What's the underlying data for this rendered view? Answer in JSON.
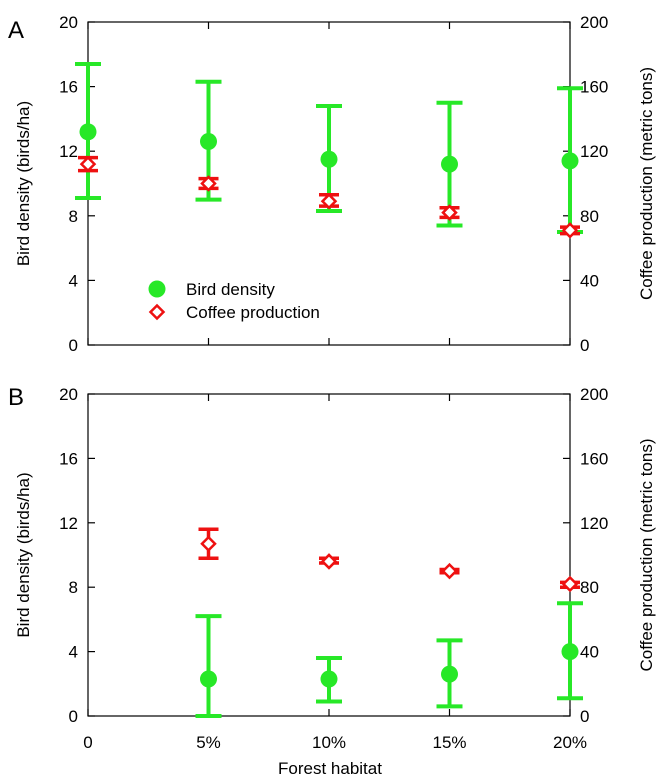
{
  "figure": {
    "x_axis_label": "Forest habitat",
    "x_tick_labels": [
      "0",
      "5%",
      "10%",
      "15%",
      "20%"
    ]
  },
  "colors": {
    "bird": "#27e827",
    "coffee": "#ee1111",
    "axis": "#000000"
  },
  "chart_data": [
    {
      "type": "scatter",
      "panel_label": "A",
      "x": [
        0,
        5,
        10,
        15,
        20
      ],
      "left_ylabel": "Bird density (birds/ha)",
      "right_ylabel": "Coffee production (metric tons)",
      "left_ylim": [
        0,
        20
      ],
      "right_ylim": [
        0,
        200
      ],
      "left_ticks": [
        "0",
        "4",
        "8",
        "12",
        "16",
        "20"
      ],
      "right_ticks": [
        "0",
        "40",
        "80",
        "120",
        "160",
        "200"
      ],
      "legend": {
        "placement": "lower-left",
        "entries": [
          "Bird density",
          "Coffee production"
        ]
      },
      "series": [
        {
          "name": "Bird density",
          "axis": "left",
          "marker": "circle",
          "values": [
            13.2,
            12.6,
            11.5,
            11.2,
            11.4
          ],
          "error_low": [
            9.1,
            9.0,
            8.3,
            7.4,
            7.0
          ],
          "error_high": [
            17.4,
            16.3,
            14.8,
            15.0,
            15.9
          ]
        },
        {
          "name": "Coffee production",
          "axis": "right",
          "marker": "diamond",
          "values": [
            112,
            100,
            89,
            82,
            71
          ],
          "error_low": [
            108,
            97,
            86,
            79,
            69
          ],
          "error_high": [
            116,
            103,
            93,
            85,
            73
          ]
        }
      ]
    },
    {
      "type": "scatter",
      "panel_label": "B",
      "x": [
        0,
        5,
        10,
        15,
        20
      ],
      "left_ylabel": "Bird density (birds/ha)",
      "right_ylabel": "Coffee production (metric tons)",
      "left_ylim": [
        0,
        20
      ],
      "right_ylim": [
        0,
        200
      ],
      "left_ticks": [
        "0",
        "4",
        "8",
        "12",
        "16",
        "20"
      ],
      "right_ticks": [
        "0",
        "40",
        "80",
        "120",
        "160",
        "200"
      ],
      "series": [
        {
          "name": "Bird density",
          "axis": "left",
          "marker": "circle",
          "x": [
            5,
            10,
            15,
            20
          ],
          "values": [
            2.3,
            2.3,
            2.6,
            4.0
          ],
          "error_low": [
            0.0,
            0.9,
            0.6,
            1.1
          ],
          "error_high": [
            6.2,
            3.6,
            4.7,
            7.0
          ]
        },
        {
          "name": "Coffee production",
          "axis": "right",
          "marker": "diamond",
          "x": [
            5,
            10,
            15,
            20
          ],
          "values": [
            107,
            96,
            90,
            82
          ],
          "error_low": [
            98,
            95,
            89,
            80
          ],
          "error_high": [
            116,
            98,
            91,
            83
          ]
        }
      ]
    }
  ]
}
